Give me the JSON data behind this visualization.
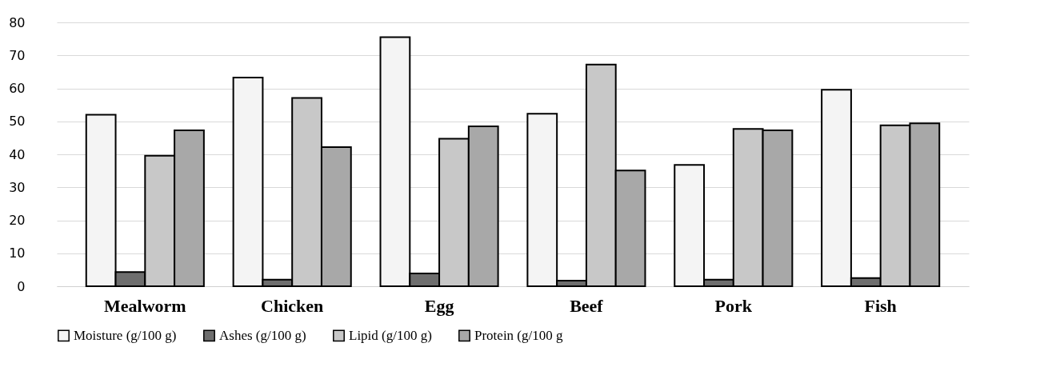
{
  "chart_data": {
    "type": "bar",
    "categories": [
      "Mealworm",
      "Chicken",
      "Egg",
      "Beef",
      "Pork",
      "Fish"
    ],
    "series": [
      {
        "name": "Moisture (g/100 g)",
        "color": "#f4f4f4",
        "values": [
          52.0,
          63.3,
          75.5,
          52.3,
          36.8,
          59.6
        ]
      },
      {
        "name": "Ashes (g/100 g)",
        "color": "#6e6e6e",
        "values": [
          4.3,
          2.0,
          3.9,
          1.7,
          2.0,
          2.5
        ]
      },
      {
        "name": "Lipid (g/100 g)",
        "color": "#c8c8c8",
        "values": [
          39.6,
          57.1,
          44.7,
          67.2,
          47.7,
          48.8
        ]
      },
      {
        "name": "Protein (g/100 g",
        "color": "#a8a8a8",
        "values": [
          47.3,
          42.2,
          48.5,
          35.1,
          47.3,
          49.4
        ]
      }
    ],
    "ylim": [
      0,
      80
    ],
    "yticks": [
      0,
      10,
      20,
      30,
      40,
      50,
      60,
      70,
      80
    ],
    "grid": "y",
    "legend": "bottom"
  }
}
